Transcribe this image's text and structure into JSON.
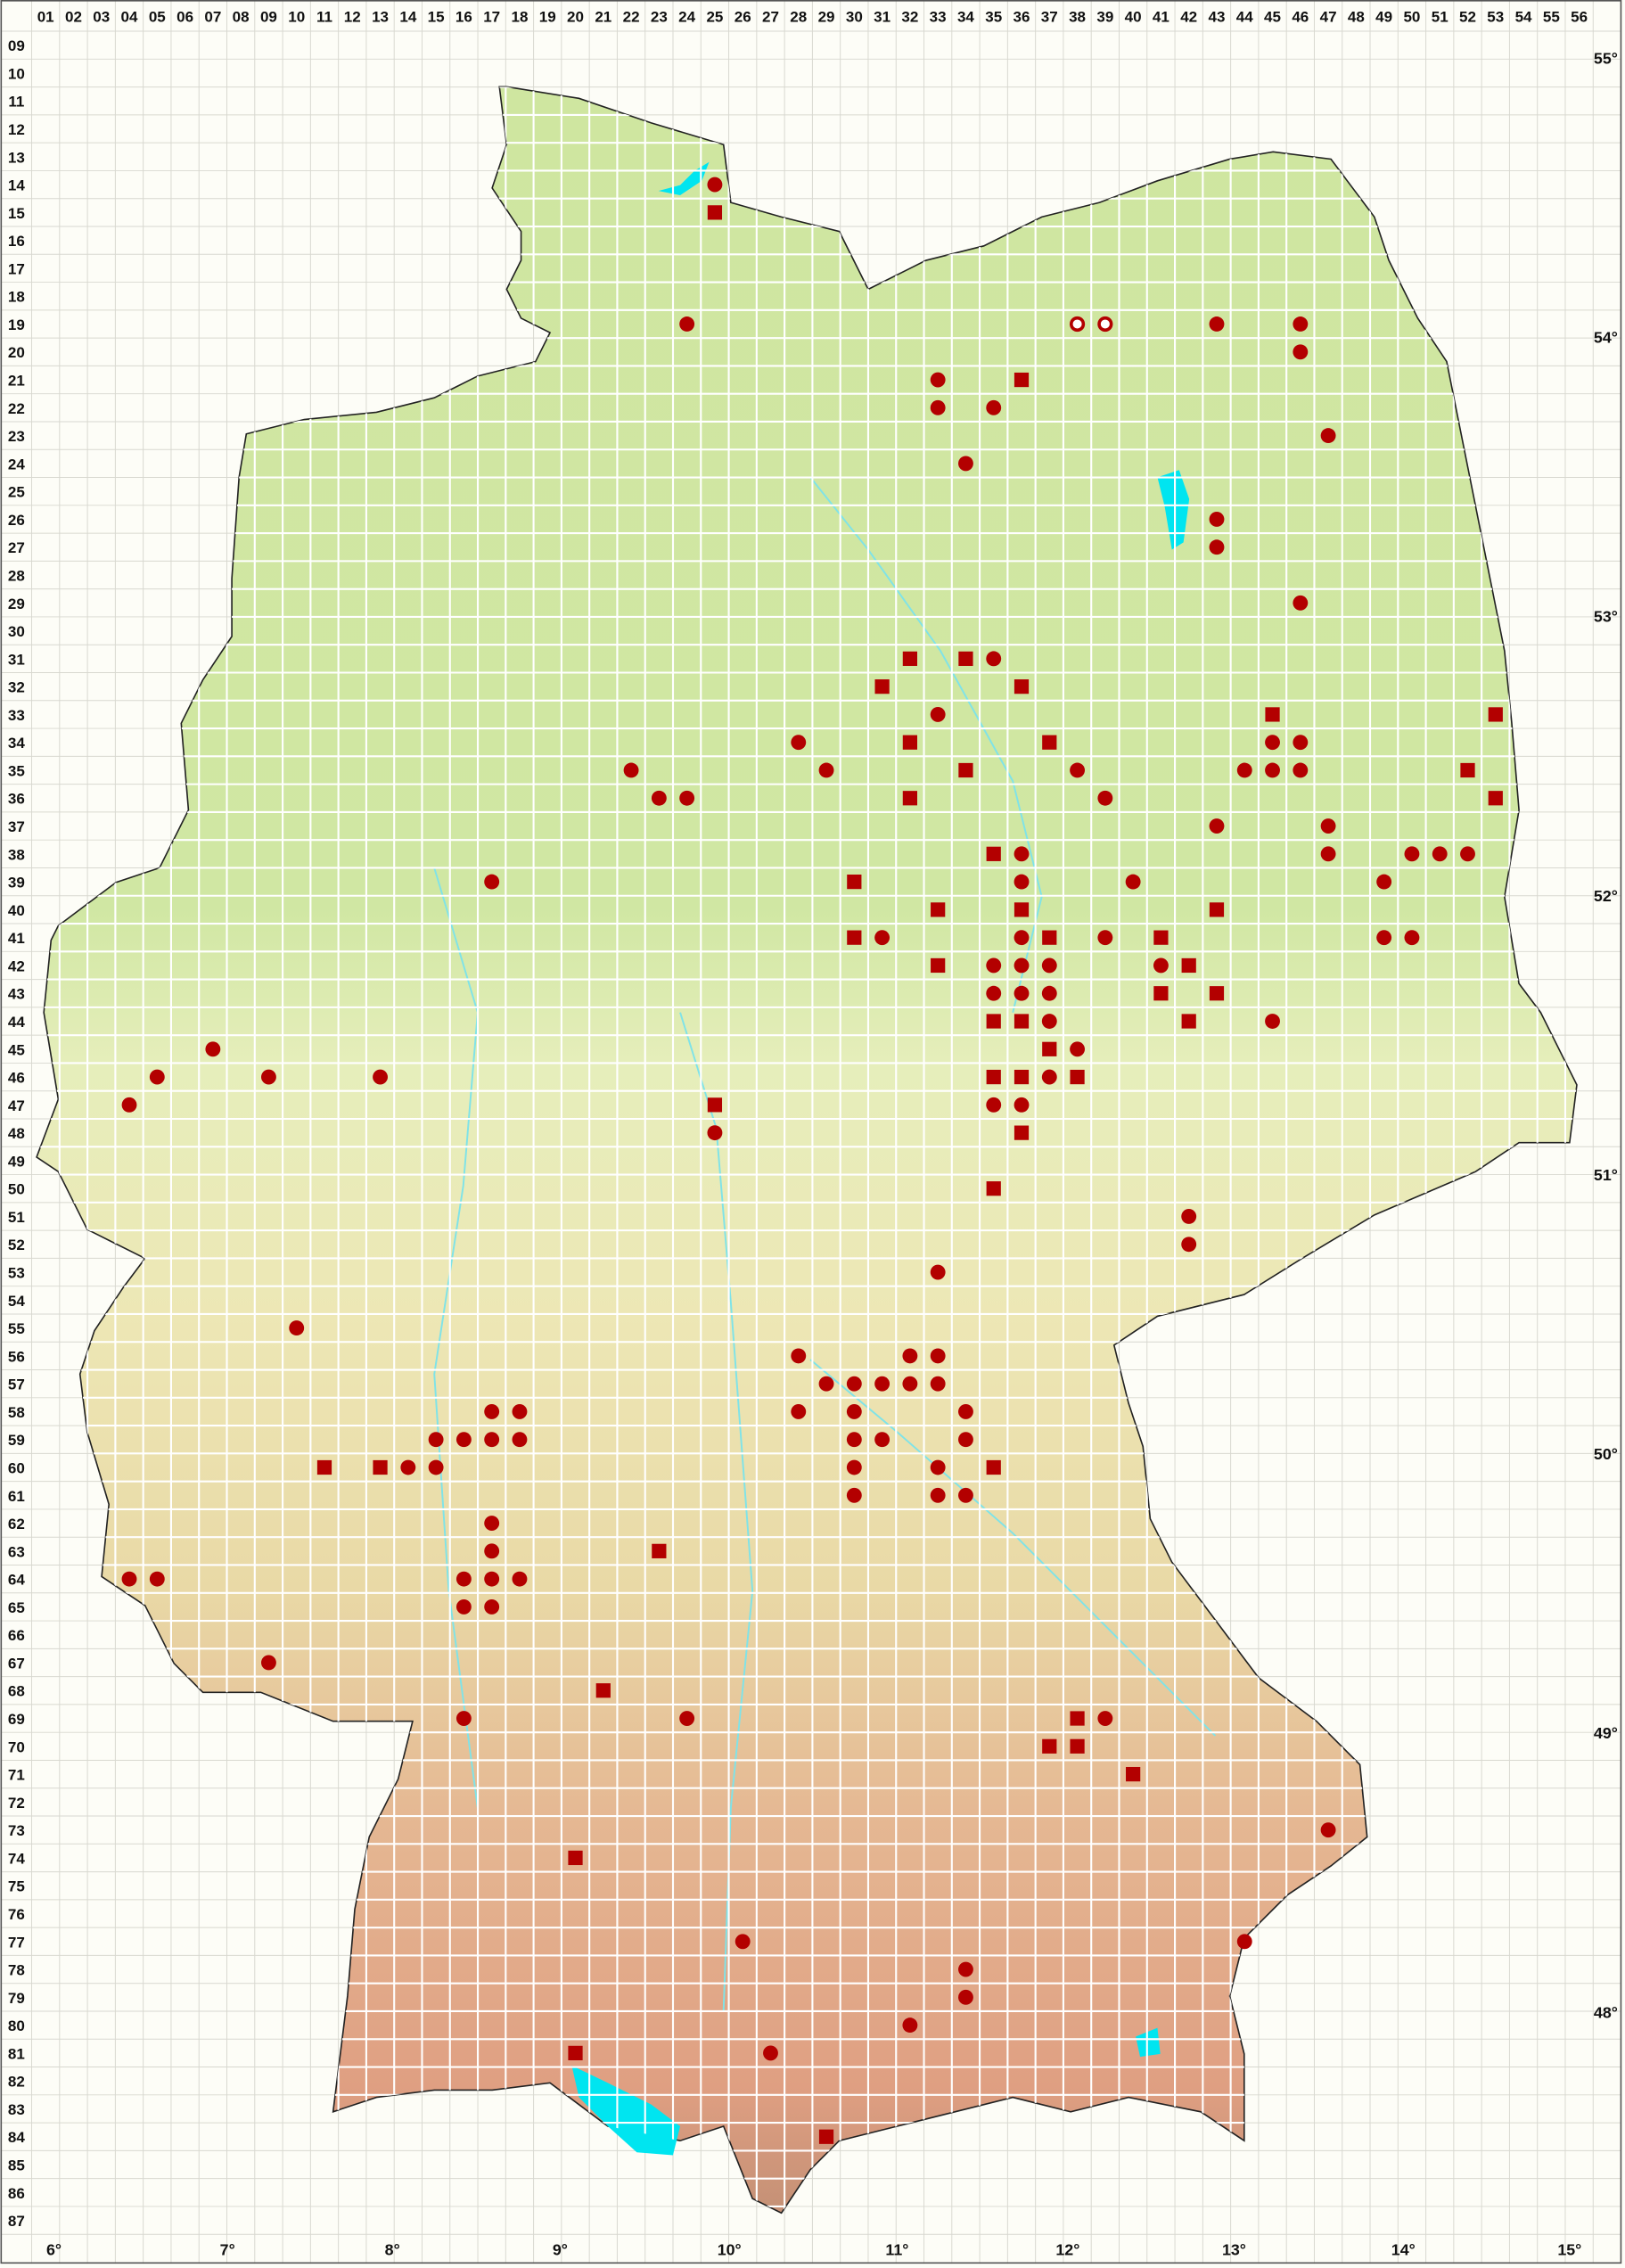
{
  "grid": {
    "columns": [
      "01",
      "02",
      "03",
      "04",
      "05",
      "06",
      "07",
      "08",
      "09",
      "10",
      "11",
      "12",
      "13",
      "14",
      "15",
      "16",
      "17",
      "18",
      "19",
      "20",
      "21",
      "22",
      "23",
      "24",
      "25",
      "26",
      "27",
      "28",
      "29",
      "30",
      "31",
      "32",
      "33",
      "34",
      "35",
      "36",
      "37",
      "38",
      "39",
      "40",
      "41",
      "42",
      "43",
      "44",
      "45",
      "46",
      "47",
      "48",
      "49",
      "50",
      "51",
      "52",
      "53",
      "54",
      "55",
      "56"
    ],
    "rows": [
      "09",
      "10",
      "11",
      "12",
      "13",
      "14",
      "15",
      "16",
      "17",
      "18",
      "19",
      "20",
      "21",
      "22",
      "23",
      "24",
      "25",
      "26",
      "27",
      "28",
      "29",
      "30",
      "31",
      "32",
      "33",
      "34",
      "35",
      "36",
      "37",
      "38",
      "39",
      "40",
      "41",
      "42",
      "43",
      "44",
      "45",
      "46",
      "47",
      "48",
      "49",
      "50",
      "51",
      "52",
      "53",
      "54",
      "55",
      "56",
      "57",
      "58",
      "59",
      "60",
      "61",
      "62",
      "63",
      "64",
      "65",
      "66",
      "67",
      "68",
      "69",
      "70",
      "71",
      "72",
      "73",
      "74",
      "75",
      "76",
      "77",
      "78",
      "79",
      "80",
      "81",
      "82",
      "83",
      "84",
      "85",
      "86",
      "87"
    ]
  },
  "latitude_labels": [
    "55°",
    "54°",
    "53°",
    "52°",
    "51°",
    "50°",
    "49°",
    "48°"
  ],
  "longitude_labels": [
    "6°",
    "7°",
    "8°",
    "9°",
    "10°",
    "11°",
    "12°",
    "13°",
    "14°",
    "15°"
  ],
  "colors": {
    "marker": "#b30000",
    "water": "#00e5f0",
    "lowland": "#cfe6a0",
    "upland": "#e8cf9f",
    "mountain": "#df9f82"
  },
  "markers": {
    "dots": [
      "25/14",
      "24/19",
      "43/19",
      "46/19",
      "46/20",
      "33/21",
      "33/22",
      "35/22",
      "47/23",
      "34/24",
      "43/26",
      "43/27",
      "46/29",
      "35/31",
      "33/33",
      "28/34",
      "45/34",
      "46/34",
      "22/35",
      "29/35",
      "38/35",
      "44/35",
      "45/35",
      "46/35",
      "23/36",
      "24/36",
      "39/36",
      "43/37",
      "47/37",
      "36/38",
      "47/38",
      "50/38",
      "51/38",
      "52/38",
      "17/39",
      "36/39",
      "40/39",
      "49/39",
      "31/41",
      "36/41",
      "39/41",
      "49/41",
      "50/41",
      "35/42",
      "36/42",
      "37/42",
      "41/42",
      "35/43",
      "36/43",
      "37/43",
      "37/44",
      "45/44",
      "07/45",
      "38/45",
      "05/46",
      "09/46",
      "13/46",
      "37/46",
      "04/47",
      "35/47",
      "36/47",
      "25/48",
      "42/51",
      "42/52",
      "33/53",
      "10/55",
      "28/56",
      "32/56",
      "33/56",
      "29/57",
      "30/57",
      "31/57",
      "32/57",
      "33/57",
      "17/58",
      "18/58",
      "28/58",
      "30/58",
      "34/58",
      "15/59",
      "16/59",
      "17/59",
      "18/59",
      "30/59",
      "31/59",
      "34/59",
      "14/60",
      "15/60",
      "30/60",
      "33/60",
      "30/61",
      "33/61",
      "34/61",
      "17/62",
      "17/63",
      "04/64",
      "05/64",
      "16/64",
      "17/64",
      "18/64",
      "16/65",
      "17/65",
      "09/67",
      "16/69",
      "24/69",
      "39/69",
      "47/73",
      "26/77",
      "44/77",
      "34/78",
      "34/79",
      "32/80",
      "27/81"
    ],
    "squares": [
      "25/15",
      "36/21",
      "32/31",
      "34/31",
      "31/32",
      "36/32",
      "45/33",
      "53/33",
      "32/34",
      "37/34",
      "34/35",
      "52/35",
      "32/36",
      "53/36",
      "35/38",
      "30/39",
      "33/40",
      "36/40",
      "43/40",
      "30/41",
      "37/41",
      "41/41",
      "33/42",
      "42/42",
      "41/43",
      "43/43",
      "35/44",
      "36/44",
      "42/44",
      "37/45",
      "35/46",
      "36/46",
      "38/46",
      "25/47",
      "36/48",
      "35/50",
      "11/60",
      "13/60",
      "35/60",
      "23/63",
      "21/68",
      "38/69",
      "37/70",
      "38/70",
      "40/71",
      "20/74",
      "20/81",
      "29/84"
    ],
    "open_circles": [
      "38/19",
      "39/19"
    ]
  }
}
